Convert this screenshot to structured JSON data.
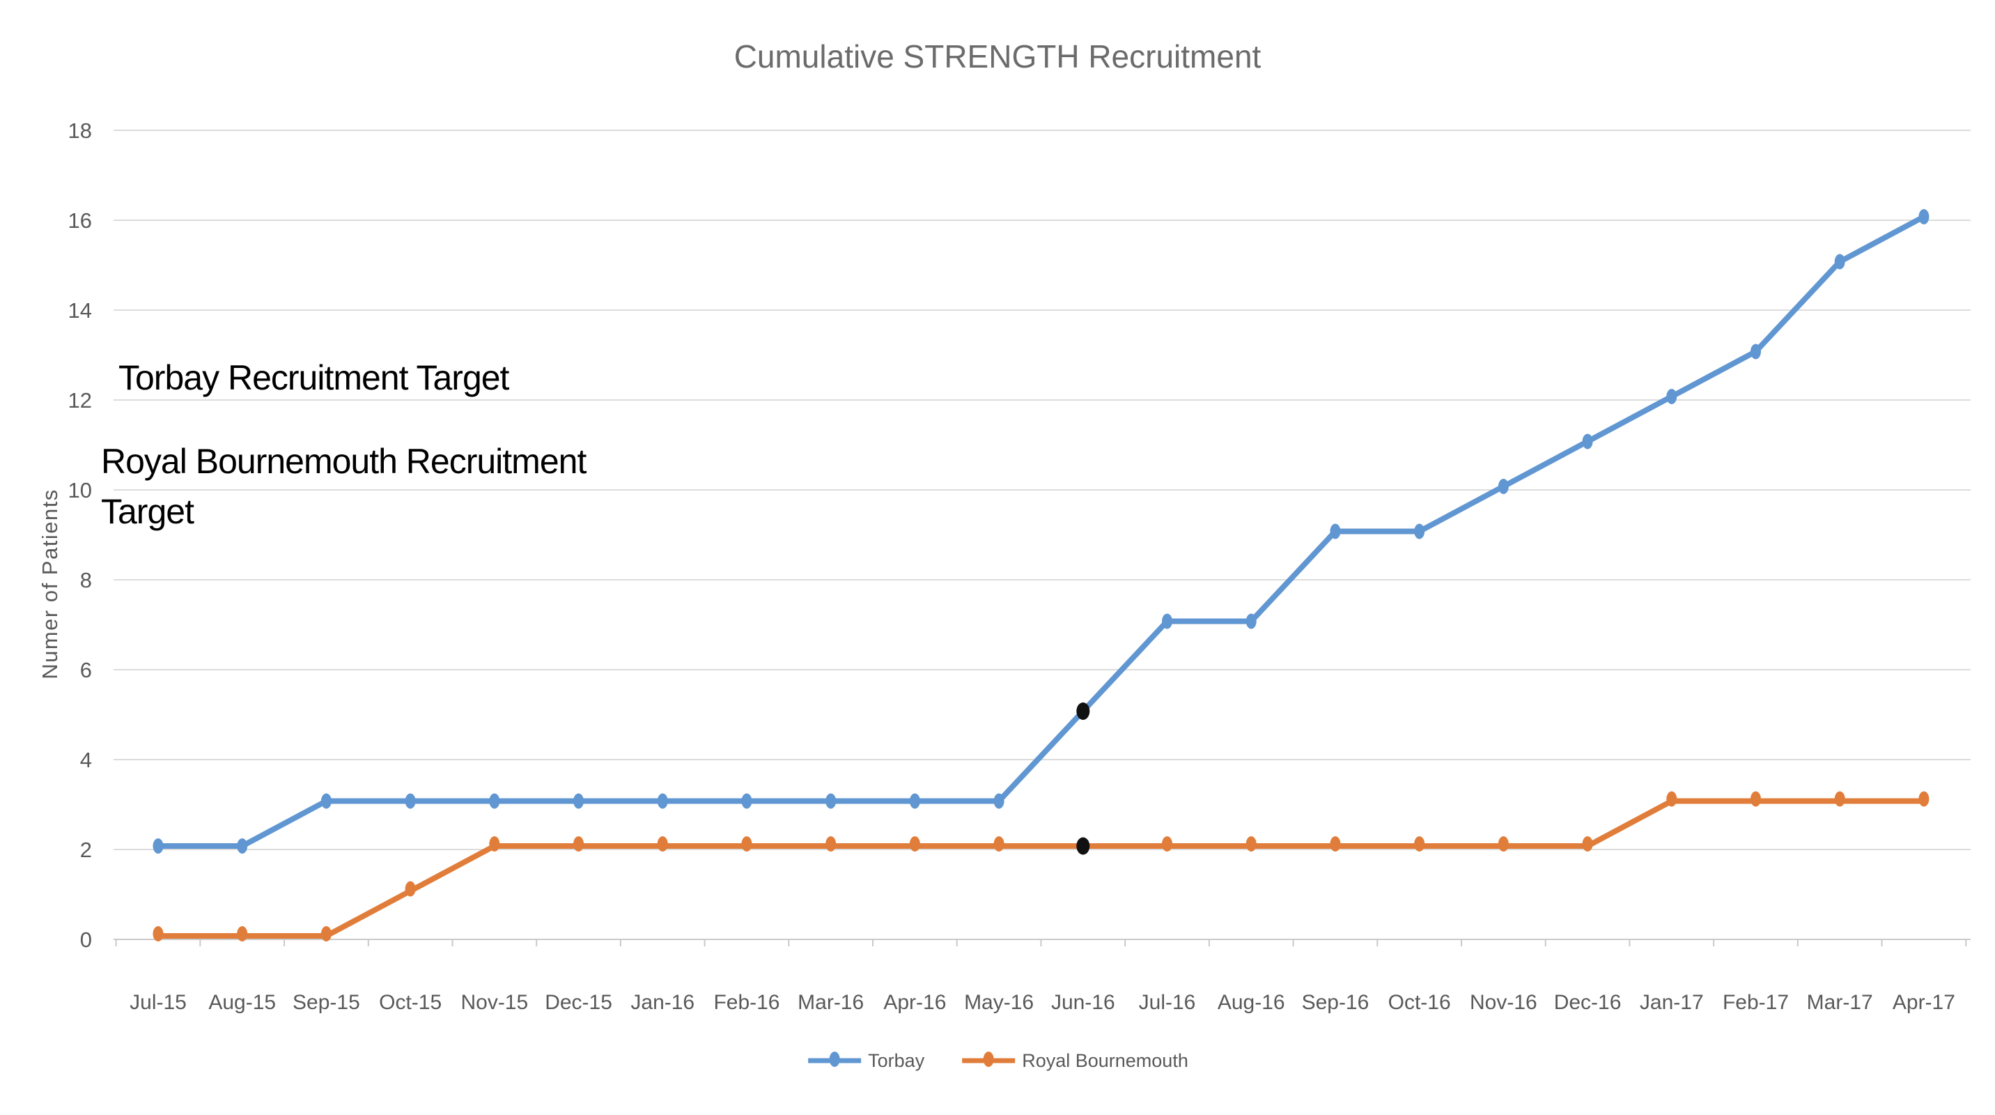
{
  "title": "Cumulative STRENGTH Recruitment",
  "y_axis_title": "Numer of Patients",
  "annotations": {
    "torbay_target_label": "Torbay Recruitment Target",
    "royal_target_line1": "Royal Bournemouth Recruitment",
    "royal_target_line2": "Target"
  },
  "legend": [
    {
      "label": "Torbay",
      "color": "#6096D1"
    },
    {
      "label": "Royal Bournemouth",
      "color": "#E17D3A"
    }
  ],
  "colors": {
    "torbay": "#6096D1",
    "royal_bournemouth": "#E17D3A",
    "torbay_target": "#7BA2D6",
    "royal_target": "#E0803E",
    "gridline": "#DCDCDC",
    "axis": "#C9C9C9",
    "tick_text": "#595959",
    "title_text": "#6B6B6B",
    "highlight": "#111111"
  },
  "chart_data": {
    "type": "line",
    "title": "Cumulative STRENGTH Recruitment",
    "xlabel": "",
    "ylabel": "Numer of Patients",
    "ylim": [
      0,
      18
    ],
    "y_ticks": [
      0,
      2,
      4,
      6,
      8,
      10,
      12,
      14,
      16,
      18
    ],
    "grid": "horizontal",
    "legend_position": "bottom",
    "categories": [
      "Jul-15",
      "Aug-15",
      "Sep-15",
      "Oct-15",
      "Nov-15",
      "Dec-15",
      "Jan-16",
      "Feb-16",
      "Mar-16",
      "Apr-16",
      "May-16",
      "Jun-16",
      "Jul-16",
      "Aug-16",
      "Sep-16",
      "Oct-16",
      "Nov-16",
      "Dec-16",
      "Jan-17",
      "Feb-17",
      "Mar-17",
      "Apr-17"
    ],
    "series": [
      {
        "name": "Torbay",
        "color": "#6096D1",
        "values": [
          2,
          2,
          3,
          3,
          3,
          3,
          3,
          3,
          3,
          3,
          3,
          5,
          7,
          7,
          9,
          9,
          10,
          11,
          12,
          13,
          15,
          16
        ]
      },
      {
        "name": "Royal Bournemouth",
        "color": "#E17D3A",
        "values": [
          0,
          0,
          0,
          1,
          2,
          2,
          2,
          2,
          2,
          2,
          2,
          2,
          2,
          2,
          2,
          2,
          2,
          2,
          3,
          3,
          3,
          3
        ]
      }
    ],
    "target_lines": [
      {
        "label": "Torbay Recruitment Target",
        "value": 12,
        "color": "#7BA2D6"
      },
      {
        "label": "Royal Bournemouth Recruitment Target",
        "value": 10,
        "color": "#E0803E"
      }
    ],
    "highlight_points": [
      {
        "series": "Torbay",
        "category": "Jun-16",
        "value": 5,
        "color": "#111111"
      },
      {
        "series": "Royal Bournemouth",
        "category": "Jun-16",
        "value": 2,
        "color": "#111111"
      }
    ]
  }
}
